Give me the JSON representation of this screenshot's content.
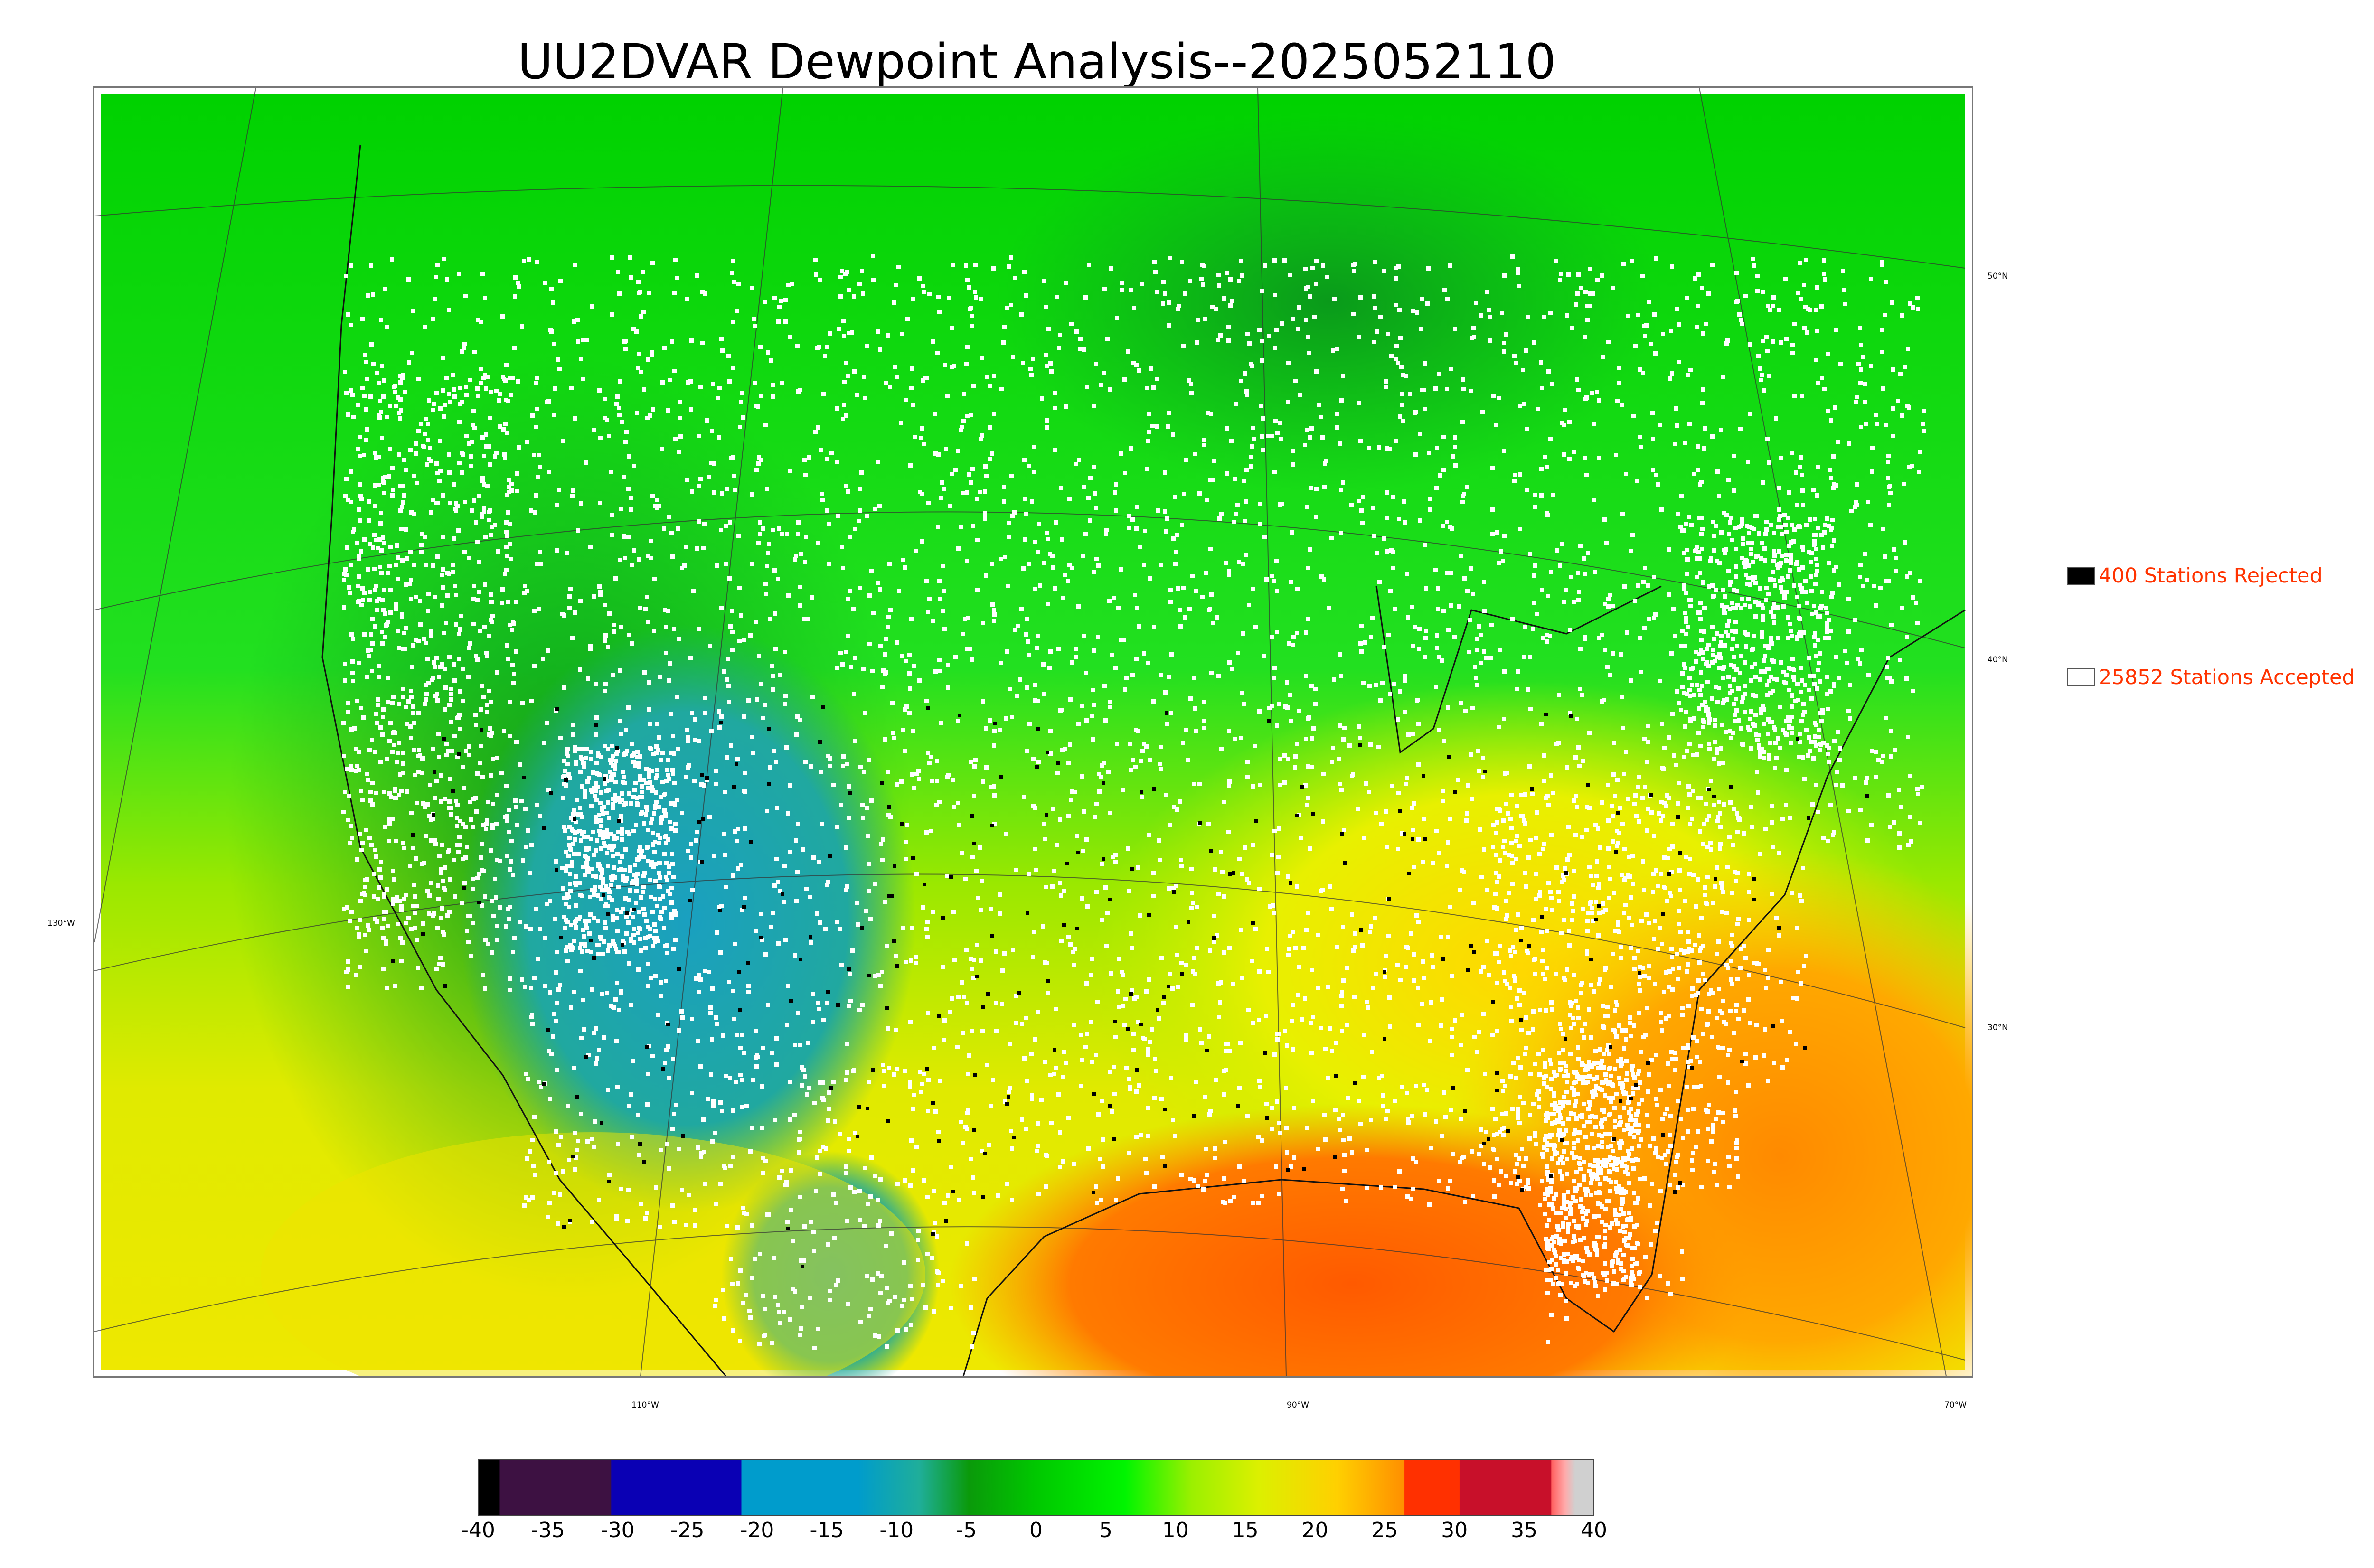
{
  "title": "UU2DVAR Dewpoint Analysis--2025052110",
  "map": {
    "latitude_labels": [
      "50°N",
      "40°N",
      "30°N"
    ],
    "longitude_labels": [
      "130°W",
      "110°W",
      "90°W",
      "70°W"
    ]
  },
  "legend": {
    "rejected": {
      "label": "400 Stations Rejected",
      "color": "#000000"
    },
    "accepted": {
      "label": "25852 Stations Accepted",
      "color": "#ffffff"
    }
  },
  "colorbar": {
    "ticks": [
      "-40",
      "-35",
      "-30",
      "-25",
      "-20",
      "-15",
      "-10",
      "-5",
      "0",
      "5",
      "10",
      "15",
      "20",
      "25",
      "30",
      "35",
      "40"
    ],
    "colors": {
      "c_m40": "#000000",
      "c_m37": "#3d1142",
      "c_m30": "#0a00b4",
      "c_m20": "#009ccc",
      "c_m10": "#1fae9a",
      "c_m5": "#0a9a0a",
      "c_0": "#00c800",
      "c_5": "#00f500",
      "c_10": "#9cf000",
      "c_15": "#dcf000",
      "c_20": "#ffd000",
      "c_25": "#ff9000",
      "c_27": "#ff3000",
      "c_32": "#c8102a",
      "c_37": "#ff6060",
      "c_38": "#ffaaaa",
      "c_39": "#d0d0d0"
    }
  }
}
